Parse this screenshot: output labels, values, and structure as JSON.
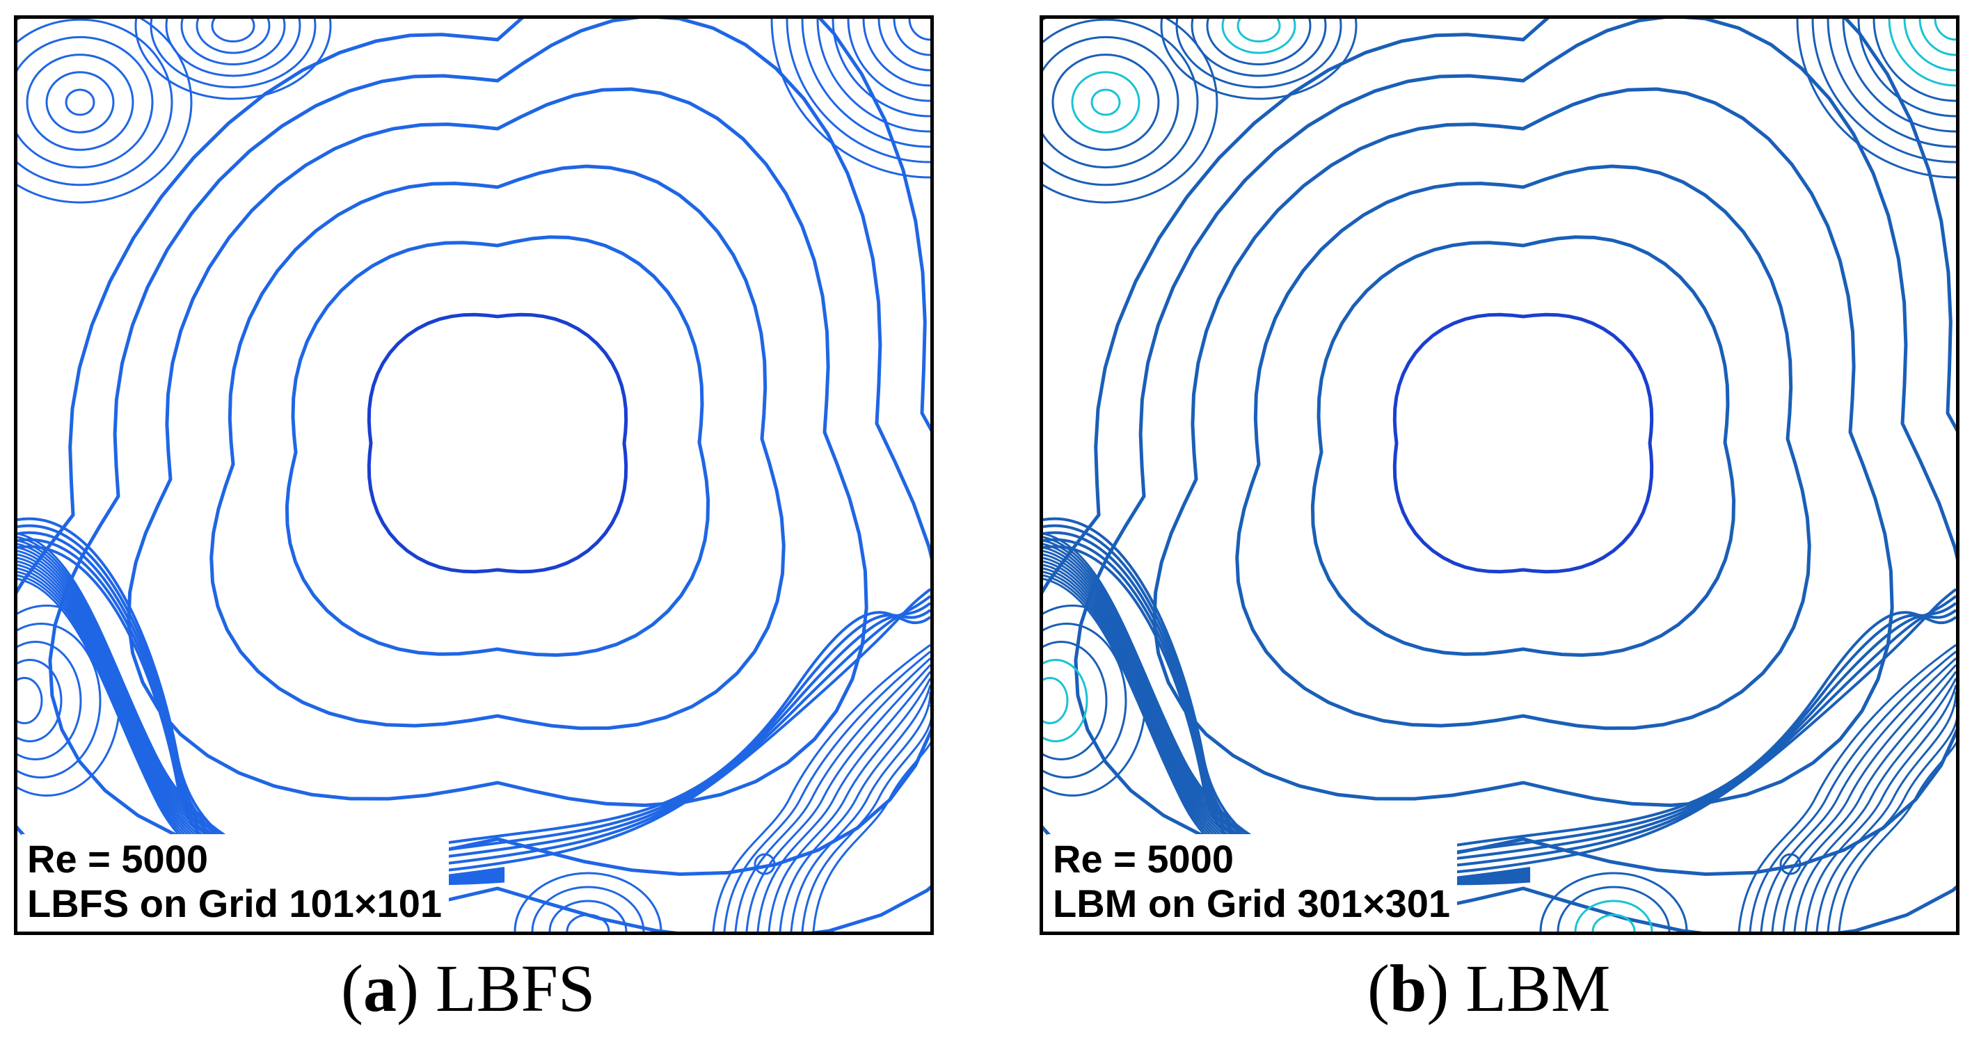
{
  "panels": [
    {
      "id": "a",
      "reynolds_label": "Re = 5000",
      "grid_label": "LBFS on Grid 101×101",
      "caption_letter": "a",
      "caption_text": "LBFS",
      "line_color": "#1f66e5",
      "accent_color": "#1565e0"
    },
    {
      "id": "b",
      "reynolds_label": "Re = 5000",
      "grid_label": "LBM on Grid 301×301",
      "caption_letter": "b",
      "caption_text": "LBM",
      "line_color": "#1a5fb8",
      "accent_color": "#19c3d6"
    }
  ]
}
